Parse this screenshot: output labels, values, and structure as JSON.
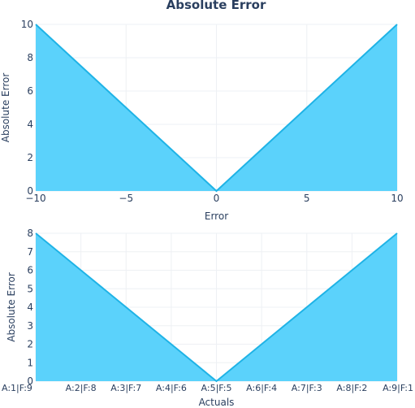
{
  "title": "Absolute Error",
  "colors": {
    "fill": "#5bd2fb",
    "line": "#1fb3e6",
    "grid": "#eef0f4",
    "text": "#2a3f5f"
  },
  "chart_data": [
    {
      "type": "area",
      "xlabel": "Error",
      "ylabel": "Absolute Error",
      "x": [
        -10,
        0,
        10
      ],
      "y": [
        10,
        0,
        10
      ],
      "xlim": [
        -10,
        10
      ],
      "ylim": [
        0,
        10
      ],
      "xticks": [
        -10,
        -5,
        0,
        5,
        10
      ],
      "xtick_labels": [
        "−10",
        "−5",
        "0",
        "5",
        "10"
      ],
      "yticks": [
        0,
        2,
        4,
        6,
        8,
        10
      ],
      "grid": true
    },
    {
      "type": "area",
      "xlabel": "Actuals",
      "ylabel": "Absolute Error",
      "categories": [
        "A:1|F:9",
        "A:2|F:8",
        "A:3|F:7",
        "A:4|F:6",
        "A:5|F:5",
        "A:6|F:4",
        "A:7|F:3",
        "A:8|F:2",
        "A:9|F:1"
      ],
      "values": [
        8,
        6,
        4,
        2,
        0,
        2,
        4,
        6,
        8
      ],
      "ylim": [
        0,
        8
      ],
      "yticks": [
        0,
        1,
        2,
        3,
        4,
        5,
        6,
        7,
        8
      ],
      "grid": true
    }
  ]
}
